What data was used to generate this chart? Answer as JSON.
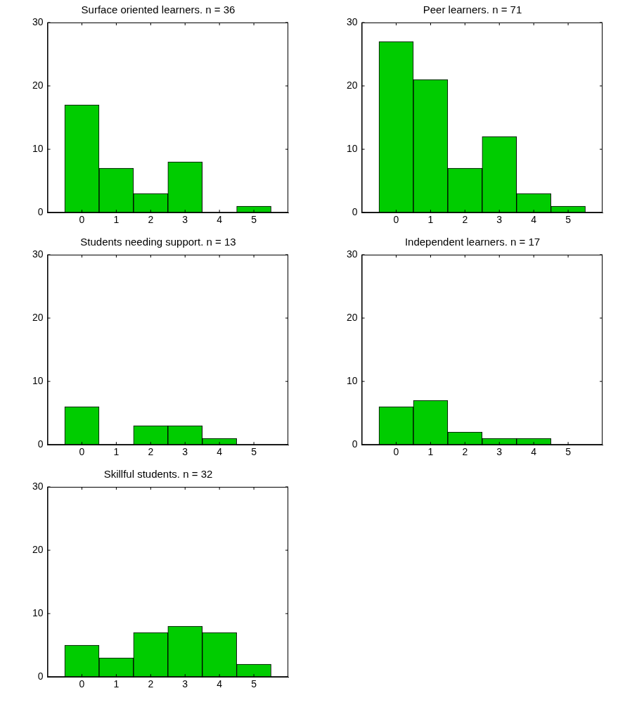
{
  "chart_data": [
    {
      "type": "histogram",
      "title": "Surface oriented learners. n = 36",
      "bins": [
        -0.5,
        0.5,
        1.5,
        2.5,
        3.5,
        4.5,
        5.5
      ],
      "values": [
        17,
        7,
        3,
        8,
        0,
        1
      ],
      "color": "#00cc00",
      "xlim": [
        -1,
        6
      ],
      "xticks": [
        0,
        1,
        2,
        3,
        4,
        5
      ],
      "ylim": [
        0,
        30
      ],
      "yticks": [
        0,
        10,
        20,
        30
      ],
      "grid": false,
      "legend": false
    },
    {
      "type": "histogram",
      "title": "Peer learners. n = 71",
      "bins": [
        -0.5,
        0.5,
        1.5,
        2.5,
        3.5,
        4.5,
        5.5
      ],
      "values": [
        27,
        21,
        7,
        12,
        3,
        1
      ],
      "color": "#00cc00",
      "xlim": [
        -1,
        6
      ],
      "xticks": [
        0,
        1,
        2,
        3,
        4,
        5
      ],
      "ylim": [
        0,
        30
      ],
      "yticks": [
        0,
        10,
        20,
        30
      ],
      "grid": false,
      "legend": false
    },
    {
      "type": "histogram",
      "title": "Students needing support. n = 13",
      "bins": [
        -0.5,
        0.5,
        1.5,
        2.5,
        3.5,
        4.5,
        5.5
      ],
      "values": [
        6,
        0,
        3,
        3,
        1,
        0
      ],
      "color": "#00cc00",
      "xlim": [
        -1,
        6
      ],
      "xticks": [
        0,
        1,
        2,
        3,
        4,
        5
      ],
      "ylim": [
        0,
        30
      ],
      "yticks": [
        0,
        10,
        20,
        30
      ],
      "grid": false,
      "legend": false
    },
    {
      "type": "histogram",
      "title": "Independent learners. n = 17",
      "bins": [
        -0.5,
        0.5,
        1.5,
        2.5,
        3.5,
        4.5,
        5.5
      ],
      "values": [
        6,
        7,
        2,
        1,
        1,
        0
      ],
      "color": "#00cc00",
      "xlim": [
        -1,
        6
      ],
      "xticks": [
        0,
        1,
        2,
        3,
        4,
        5
      ],
      "ylim": [
        0,
        30
      ],
      "yticks": [
        0,
        10,
        20,
        30
      ],
      "grid": false,
      "legend": false
    },
    {
      "type": "histogram",
      "title": "Skillful students. n = 32",
      "bins": [
        -0.5,
        0.5,
        1.5,
        2.5,
        3.5,
        4.5,
        5.5
      ],
      "values": [
        5,
        3,
        7,
        8,
        7,
        2
      ],
      "color": "#00cc00",
      "xlim": [
        -1,
        6
      ],
      "xticks": [
        0,
        1,
        2,
        3,
        4,
        5
      ],
      "ylim": [
        0,
        30
      ],
      "yticks": [
        0,
        10,
        20,
        30
      ],
      "grid": false,
      "legend": false
    }
  ]
}
